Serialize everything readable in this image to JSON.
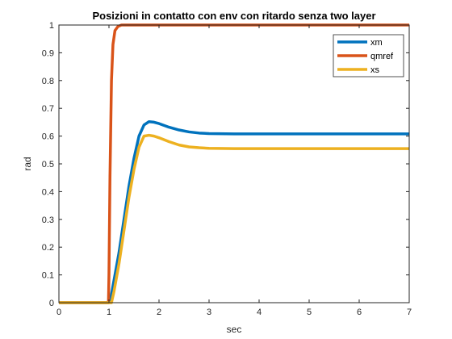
{
  "chart_data": {
    "type": "line",
    "title": "Posizioni in contatto con env con ritardo senza two layer",
    "xlabel": "sec",
    "ylabel": "rad",
    "xlim": [
      0,
      7
    ],
    "ylim": [
      0,
      1
    ],
    "xticks": [
      "0",
      "1",
      "2",
      "3",
      "4",
      "5",
      "6",
      "7"
    ],
    "yticks": [
      "0",
      "0.1",
      "0.2",
      "0.3",
      "0.4",
      "0.5",
      "0.6",
      "0.7",
      "0.8",
      "0.9",
      "1"
    ],
    "grid": false,
    "legend_position": "top-right",
    "series": [
      {
        "name": "xm",
        "color": "#0072BD",
        "x": [
          0,
          1.0,
          1.05,
          1.1,
          1.2,
          1.3,
          1.4,
          1.5,
          1.6,
          1.7,
          1.8,
          1.9,
          2.0,
          2.2,
          2.4,
          2.6,
          2.8,
          3.0,
          3.5,
          4.0,
          5.0,
          6.0,
          7.0
        ],
        "y": [
          0,
          0,
          0.03,
          0.08,
          0.18,
          0.3,
          0.42,
          0.52,
          0.6,
          0.64,
          0.652,
          0.65,
          0.645,
          0.632,
          0.622,
          0.615,
          0.611,
          0.609,
          0.608,
          0.608,
          0.608,
          0.608,
          0.608
        ]
      },
      {
        "name": "qmref",
        "color": "#D95319",
        "x": [
          0,
          0.99,
          1.0,
          1.02,
          1.05,
          1.08,
          1.12,
          1.18,
          1.25,
          1.35,
          7.0
        ],
        "y": [
          0,
          0,
          0.1,
          0.45,
          0.8,
          0.93,
          0.98,
          0.995,
          1.0,
          1.0,
          1.0
        ]
      },
      {
        "name": "xs",
        "color": "#EDB120",
        "x": [
          0,
          1.05,
          1.1,
          1.2,
          1.3,
          1.4,
          1.5,
          1.6,
          1.7,
          1.8,
          1.9,
          2.0,
          2.2,
          2.4,
          2.6,
          2.8,
          3.0,
          3.5,
          4.0,
          5.0,
          6.0,
          7.0
        ],
        "y": [
          0,
          0,
          0.04,
          0.14,
          0.26,
          0.38,
          0.48,
          0.56,
          0.6,
          0.603,
          0.6,
          0.594,
          0.58,
          0.568,
          0.561,
          0.558,
          0.556,
          0.555,
          0.555,
          0.555,
          0.555,
          0.555
        ]
      }
    ]
  }
}
